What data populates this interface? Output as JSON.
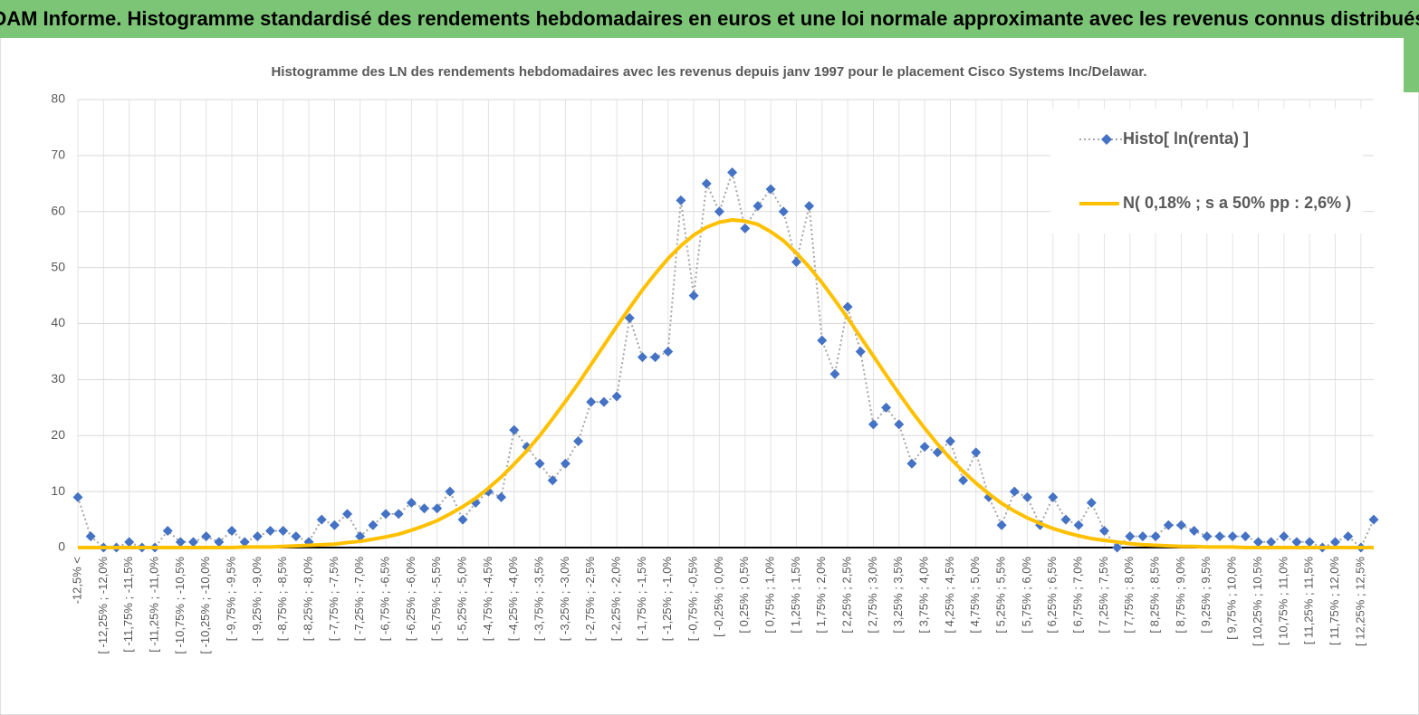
{
  "header": {
    "title": "ADAM Informe. Histogramme standardisé des rendements hebdomadaires en euros et une loi normale approximante avec les revenus connus distribués"
  },
  "chart_data": {
    "type": "line",
    "title": "Histogramme  des LN des rendements hebdomadaires avec les revenus depuis janv 1997 pour le placement Cisco Systems Inc/Delawar.",
    "categories": [
      "-12,5% <",
      null,
      "[ -12,25% ; -12,0%",
      null,
      "[ -11,75% ; -11,5%",
      null,
      "[ -11,25% ; -11,0%",
      null,
      "[ -10,75% ; -10,5%",
      null,
      "[ -10,25% ; -10,0%",
      null,
      "[ -9,75% ; -9,5%",
      null,
      "[ -9,25% ; -9,0%",
      null,
      "[ -8,75% ; -8,5%",
      null,
      "[ -8,25% ; -8,0%",
      null,
      "[ -7,75% ; -7,5%",
      null,
      "[ -7,25% ; -7,0%",
      null,
      "[ -6,75% ; -6,5%",
      null,
      "[ -6,25% ; -6,0%",
      null,
      "[ -5,75% ; -5,5%",
      null,
      "[ -5,25% ; -5,0%",
      null,
      "[ -4,75% ; -4,5%",
      null,
      "[ -4,25% ; -4,0%",
      null,
      "[ -3,75% ; -3,5%",
      null,
      "[ -3,25% ; -3,0%",
      null,
      "[ -2,75% ; -2,5%",
      null,
      "[ -2,25% ; -2,0%",
      null,
      "[ -1,75% ; -1,5%",
      null,
      "[ -1,25% ; -1,0%",
      null,
      "[ -0,75% ; -0,5%",
      null,
      "[ -0,25% ; 0,0%",
      null,
      "[ 0,25% ; 0,5%",
      null,
      "[ 0,75% ; 1,0%",
      null,
      "[ 1,25% ; 1,5%",
      null,
      "[ 1,75% ; 2,0%",
      null,
      "[ 2,25% ; 2,5%",
      null,
      "[ 2,75% ; 3,0%",
      null,
      "[ 3,25% ; 3,5%",
      null,
      "[ 3,75% ; 4,0%",
      null,
      "[ 4,25% ; 4,5%",
      null,
      "[ 4,75% ; 5,0%",
      null,
      "[ 5,25% ; 5,5%",
      null,
      "[ 5,75% ; 6,0%",
      null,
      "[ 6,25% ; 6,5%",
      null,
      "[ 6,75% ; 7,0%",
      null,
      "[ 7,25% ; 7,5%",
      null,
      "[ 7,75% ; 8,0%",
      null,
      "[ 8,25% ; 8,5%",
      null,
      "[ 8,75% ; 9,0%",
      null,
      "[ 9,25% ; 9,5%",
      null,
      "[ 9,75% ; 10,0%",
      null,
      "[ 10,25% ; 10,5%",
      null,
      "[ 10,75% ; 11,0%",
      null,
      "[ 11,25% ; 11,5%",
      null,
      "[ 11,75% ; 12,0%",
      null,
      "[ 12,25% ; 12,5%",
      null
    ],
    "series": [
      {
        "name": "Histo[ ln(renta) ]",
        "color": "#4472c4",
        "line_color": "#a6a6a6",
        "values": [
          9,
          2,
          0,
          0,
          1,
          0,
          0,
          3,
          1,
          1,
          2,
          1,
          3,
          1,
          2,
          3,
          3,
          2,
          1,
          5,
          4,
          6,
          2,
          4,
          6,
          6,
          8,
          7,
          7,
          10,
          5,
          8,
          10,
          9,
          21,
          18,
          15,
          12,
          15,
          19,
          26,
          26,
          27,
          41,
          34,
          34,
          35,
          62,
          45,
          65,
          60,
          67,
          57,
          61,
          64,
          60,
          51,
          61,
          37,
          31,
          43,
          35,
          22,
          25,
          22,
          15,
          18,
          17,
          19,
          12,
          17,
          9,
          4,
          10,
          9,
          4,
          9,
          5,
          4,
          8,
          3,
          0,
          2,
          2,
          2,
          4,
          4,
          3,
          2,
          2,
          2,
          2,
          1,
          1,
          2,
          1,
          1,
          0,
          1,
          2,
          0,
          5
        ]
      },
      {
        "name": "N( 0,18% ; s a 50% pp : 2,6% )",
        "color": "#ffc000",
        "values": [
          0,
          0,
          0,
          0,
          0,
          0,
          0,
          0,
          0,
          0,
          0,
          0,
          0,
          0.1,
          0.1,
          0.1,
          0.2,
          0.3,
          0.4,
          0.5,
          0.6,
          0.9,
          1.1,
          1.5,
          1.9,
          2.4,
          3.1,
          3.9,
          4.8,
          6.0,
          7.3,
          8.8,
          10.6,
          12.6,
          14.9,
          17.3,
          20.0,
          23.0,
          26.1,
          29.3,
          32.7,
          36.1,
          39.5,
          42.8,
          46.0,
          48.9,
          51.6,
          53.9,
          55.8,
          57.2,
          58.1,
          58.5,
          58.3,
          57.7,
          56.4,
          54.8,
          52.6,
          50.1,
          47.3,
          44.2,
          41.0,
          37.6,
          34.2,
          30.8,
          27.5,
          24.3,
          21.3,
          18.5,
          15.9,
          13.6,
          11.5,
          9.6,
          7.9,
          6.5,
          5.3,
          4.3,
          3.4,
          2.7,
          2.1,
          1.6,
          1.3,
          1.0,
          0.7,
          0.5,
          0.4,
          0.3,
          0.2,
          0.2,
          0.1,
          0.1,
          0.1,
          0,
          0,
          0,
          0,
          0,
          0,
          0,
          0,
          0,
          0,
          0
        ]
      }
    ],
    "ylim": [
      0,
      80
    ],
    "yticks": [
      0,
      10,
      20,
      30,
      40,
      50,
      60,
      70,
      80
    ],
    "grid": true,
    "legend": "top-right"
  }
}
